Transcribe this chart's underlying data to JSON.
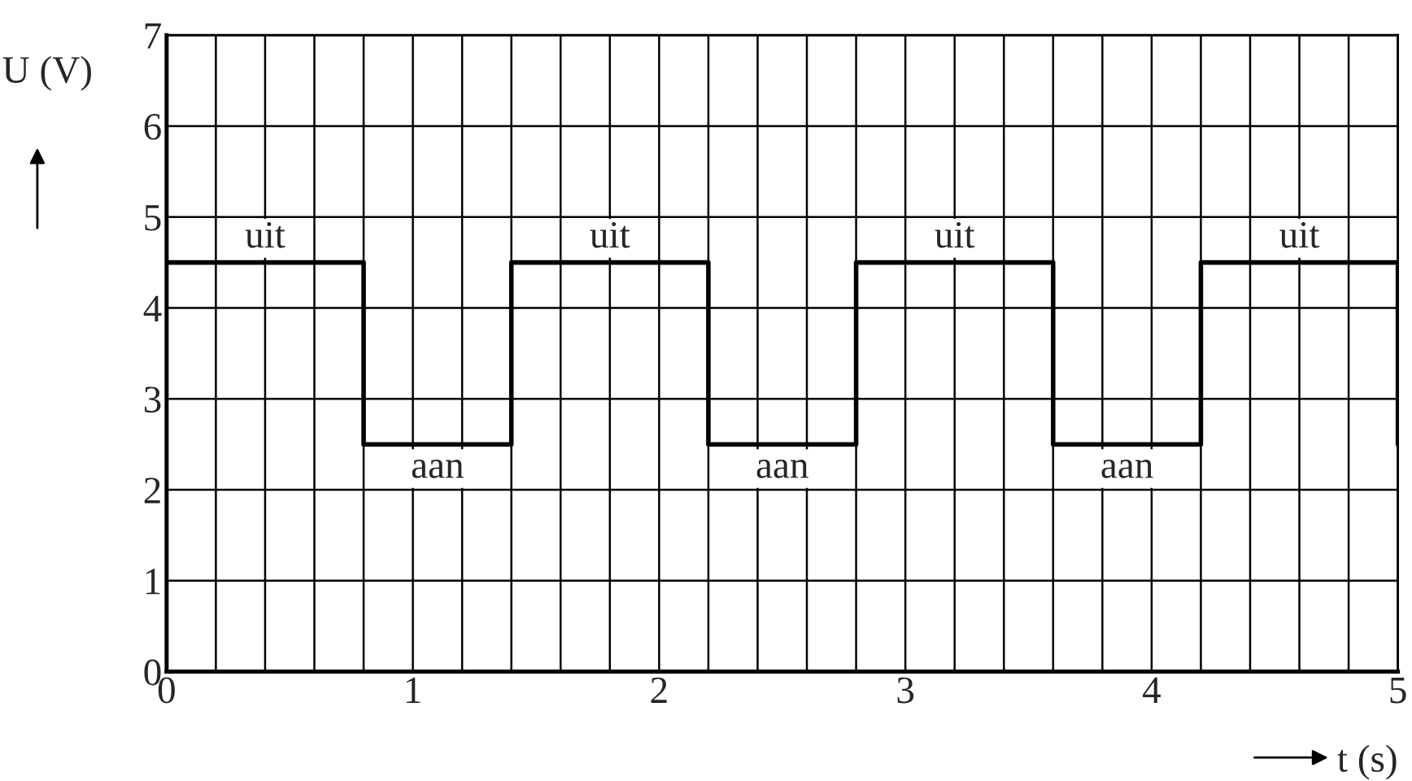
{
  "chart_data": {
    "type": "step",
    "xlabel": "t (s)",
    "ylabel": "U (V)",
    "x": [
      0,
      0.8,
      1.4,
      2.2,
      2.8,
      3.6,
      4.2,
      5
    ],
    "series": [
      {
        "color": "#000000",
        "values": [
          4.5,
          2.5,
          4.5,
          2.5,
          4.5,
          2.5,
          4.5,
          2.5
        ]
      }
    ],
    "xlim": [
      0,
      5
    ],
    "ylim": [
      0,
      7
    ],
    "xticks": [
      0,
      {
        "value": 0.2,
        "label": null
      },
      {
        "value": 0.4,
        "label": null
      },
      {
        "value": 0.6,
        "label": null
      },
      {
        "value": 0.8,
        "label": null
      },
      1,
      {
        "value": 1.2,
        "label": null
      },
      {
        "value": 1.4,
        "label": null
      },
      {
        "value": 1.6,
        "label": null
      },
      {
        "value": 1.8,
        "label": null
      },
      2,
      {
        "value": 2.2,
        "label": null
      },
      {
        "value": 2.4,
        "label": null
      },
      {
        "value": 2.6,
        "label": null
      },
      {
        "value": 2.8,
        "label": null
      },
      3,
      {
        "value": 3.2,
        "label": null
      },
      {
        "value": 3.4,
        "label": null
      },
      {
        "value": 3.6,
        "label": null
      },
      {
        "value": 3.8,
        "label": null
      },
      4,
      {
        "value": 4.2,
        "label": null
      },
      {
        "value": 4.4,
        "label": null
      },
      {
        "value": 4.6,
        "label": null
      },
      {
        "value": 4.8,
        "label": null
      },
      5
    ],
    "yticks": [
      0,
      1,
      2,
      3,
      4,
      5,
      6,
      7
    ],
    "grid": true,
    "annotations": [
      {
        "text": "uit",
        "x": 0.4,
        "y": 4.5
      },
      {
        "text": "aan",
        "x": 1.1,
        "y": 2.5
      },
      {
        "text": "uit",
        "x": 1.8,
        "y": 4.5
      },
      {
        "text": "aan",
        "x": 2.5,
        "y": 2.5
      },
      {
        "text": "uit",
        "x": 3.2,
        "y": 4.5
      },
      {
        "text": "aan",
        "x": 3.9,
        "y": 2.5
      },
      {
        "text": "uit",
        "x": 4.6,
        "y": 4.5
      }
    ]
  }
}
